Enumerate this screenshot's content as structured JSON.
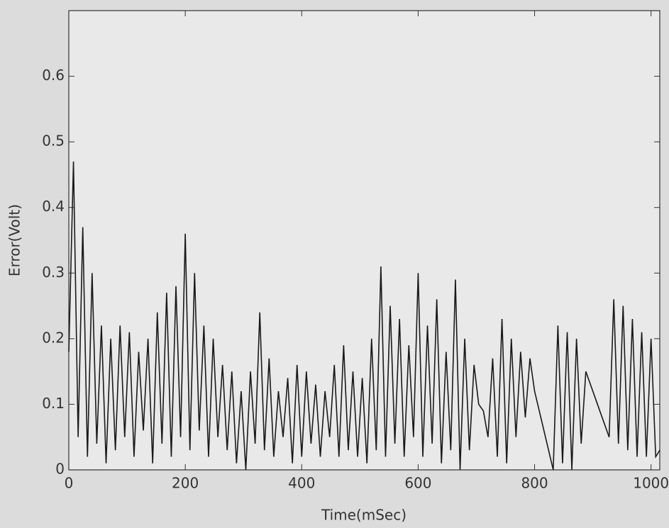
{
  "chart_data": {
    "type": "line",
    "x_label": "Time(mSec)",
    "y_label": "Error(Volt)",
    "x": [
      0,
      8,
      16,
      24,
      32,
      40,
      48,
      56,
      64,
      72,
      80,
      88,
      96,
      104,
      112,
      120,
      128,
      136,
      144,
      152,
      160,
      168,
      176,
      184,
      192,
      200,
      208,
      216,
      224,
      232,
      240,
      248,
      256,
      264,
      272,
      280,
      288,
      296,
      304,
      312,
      320,
      328,
      336,
      344,
      352,
      360,
      368,
      376,
      384,
      392,
      400,
      408,
      416,
      424,
      432,
      440,
      448,
      456,
      464,
      472,
      480,
      488,
      496,
      504,
      512,
      520,
      528,
      536,
      544,
      552,
      560,
      568,
      576,
      584,
      592,
      600,
      608,
      616,
      624,
      632,
      640,
      648,
      656,
      664,
      672,
      680,
      688,
      696,
      704,
      712,
      720,
      728,
      736,
      744,
      752,
      760,
      768,
      776,
      784,
      792,
      800,
      808,
      816,
      824,
      832,
      840,
      848,
      856,
      864,
      872,
      880,
      888,
      896,
      904,
      912,
      920,
      928,
      936,
      944,
      952,
      960,
      968,
      976,
      984,
      992,
      1000,
      1008,
      1015
    ],
    "series": [
      {
        "color": "#1a1a1a",
        "values": [
          0.18,
          0.47,
          0.05,
          0.37,
          0.02,
          0.3,
          0.04,
          0.22,
          0.01,
          0.2,
          0.03,
          0.22,
          0.05,
          0.21,
          0.02,
          0.18,
          0.06,
          0.2,
          0.01,
          0.24,
          0.04,
          0.27,
          0.02,
          0.28,
          0.05,
          0.36,
          0.03,
          0.3,
          0.06,
          0.22,
          0.02,
          0.2,
          0.05,
          0.16,
          0.03,
          0.15,
          0.01,
          0.12,
          0.0,
          0.15,
          0.04,
          0.24,
          0.03,
          0.17,
          0.02,
          0.12,
          0.05,
          0.14,
          0.01,
          0.16,
          0.02,
          0.15,
          0.04,
          0.13,
          0.02,
          0.12,
          0.05,
          0.16,
          0.02,
          0.19,
          0.03,
          0.15,
          0.02,
          0.14,
          0.01,
          0.2,
          0.03,
          0.31,
          0.02,
          0.25,
          0.04,
          0.23,
          0.02,
          0.19,
          0.05,
          0.3,
          0.02,
          0.22,
          0.04,
          0.26,
          0.01,
          0.18,
          0.03,
          0.29,
          0.0,
          0.2,
          0.03,
          0.16,
          0.1,
          0.09,
          0.05,
          0.17,
          0.02,
          0.23,
          0.01,
          0.2,
          0.05,
          0.18,
          0.08,
          0.17,
          0.12,
          0.09,
          0.06,
          0.03,
          0.0,
          0.22,
          0.01,
          0.21,
          0.0,
          0.2,
          0.04,
          0.15,
          0.13,
          0.11,
          0.09,
          0.07,
          0.05,
          0.26,
          0.04,
          0.25,
          0.03,
          0.23,
          0.02,
          0.21,
          0.02,
          0.2,
          0.02,
          0.03
        ]
      }
    ],
    "xlim": [
      0,
      1015
    ],
    "ylim": [
      0,
      0.7
    ],
    "xticks": [
      0,
      200,
      400,
      600,
      800,
      1000
    ],
    "yticks": [
      0,
      0.1,
      0.2,
      0.3,
      0.4,
      0.5,
      0.6
    ]
  }
}
